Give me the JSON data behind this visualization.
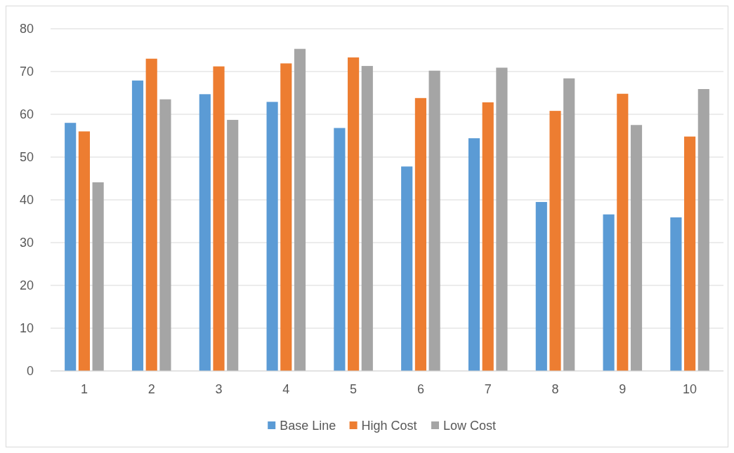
{
  "chart_data": {
    "type": "bar",
    "categories": [
      "1",
      "2",
      "3",
      "4",
      "5",
      "6",
      "7",
      "8",
      "9",
      "10"
    ],
    "series": [
      {
        "name": "Base Line",
        "color": "#5b9bd5",
        "values": [
          58.0,
          67.9,
          64.7,
          62.9,
          56.8,
          47.8,
          54.4,
          39.5,
          36.6,
          35.9
        ]
      },
      {
        "name": "High Cost",
        "color": "#ed7d31",
        "values": [
          56.0,
          73.0,
          71.2,
          71.9,
          73.3,
          63.8,
          62.8,
          60.8,
          64.8,
          54.8
        ]
      },
      {
        "name": "Low Cost",
        "color": "#a5a5a5",
        "values": [
          44.1,
          63.5,
          58.7,
          75.3,
          71.3,
          70.2,
          70.9,
          68.4,
          57.5,
          65.9
        ]
      }
    ],
    "ylim": [
      0,
      80
    ],
    "yticks": [
      0,
      10,
      20,
      30,
      40,
      50,
      60,
      70,
      80
    ],
    "grid": "y",
    "legend": "bottom"
  }
}
